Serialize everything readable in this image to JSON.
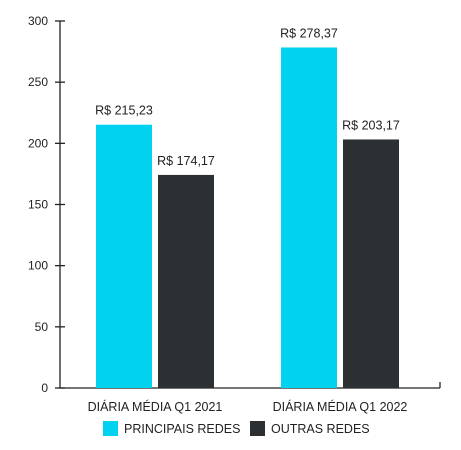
{
  "chart_data": {
    "type": "bar",
    "title": "",
    "xlabel": "",
    "ylabel": "",
    "ylim": [
      0,
      300
    ],
    "yticks": [
      0,
      50,
      100,
      150,
      200,
      250,
      300
    ],
    "categories": [
      "DIÁRIA MÉDIA Q1 2021",
      "DIÁRIA MÉDIA Q1 2022"
    ],
    "series": [
      {
        "name": "PRINCIPAIS REDES",
        "color": "#00D2EF",
        "values": [
          215.23,
          278.37
        ],
        "labels": [
          "R$ 215,23",
          "R$ 278,37"
        ]
      },
      {
        "name": "OUTRAS REDES",
        "color": "#2D3032",
        "values": [
          174.17,
          203.17
        ],
        "labels": [
          "R$ 174,17",
          "R$ 203,17"
        ]
      }
    ],
    "legend_position": "bottom",
    "grid": false
  }
}
